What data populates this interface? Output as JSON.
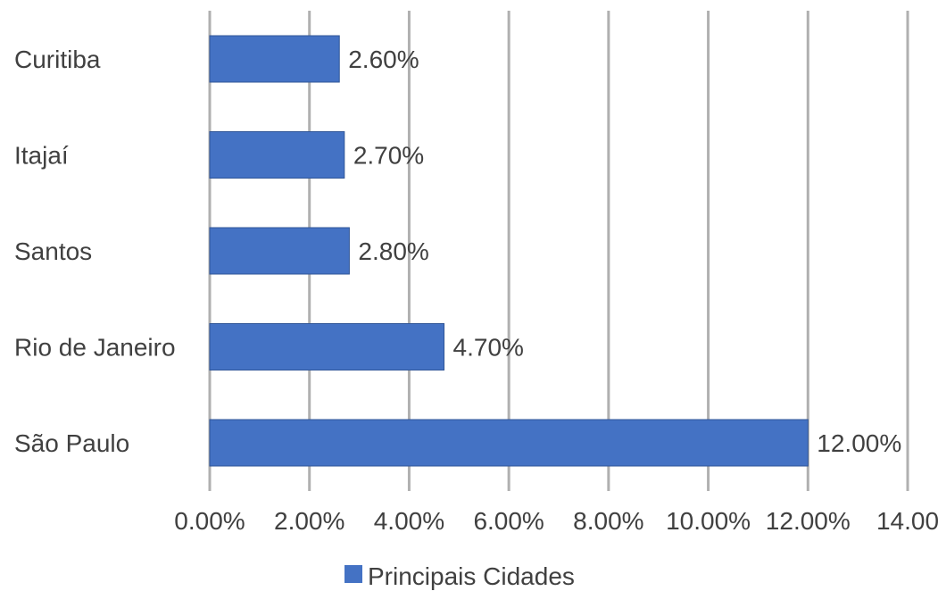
{
  "chart_data": {
    "type": "bar",
    "orientation": "horizontal",
    "categories": [
      "Curitiba",
      "Itajaí",
      "Santos",
      "Rio de Janeiro",
      "São Paulo"
    ],
    "series": [
      {
        "name": "Principais Cidades",
        "values": [
          2.6,
          2.7,
          2.8,
          4.7,
          12.0
        ],
        "data_labels": [
          "2.60%",
          "2.70%",
          "2.80%",
          "4.70%",
          "12.00%"
        ],
        "color": "#4472c4"
      }
    ],
    "xlim": [
      0,
      14
    ],
    "x_ticks": [
      0,
      2,
      4,
      6,
      8,
      10,
      12,
      14
    ],
    "x_tick_labels": [
      "0.00%",
      "2.00%",
      "4.00%",
      "6.00%",
      "8.00%",
      "10.00%",
      "12.00%",
      "14.00"
    ],
    "grid": true,
    "legend_position": "bottom",
    "colors": {
      "bar": "#4472c4",
      "bar_border": "#2f5597",
      "grid": "#b0b0b0",
      "text": "#404040"
    }
  }
}
